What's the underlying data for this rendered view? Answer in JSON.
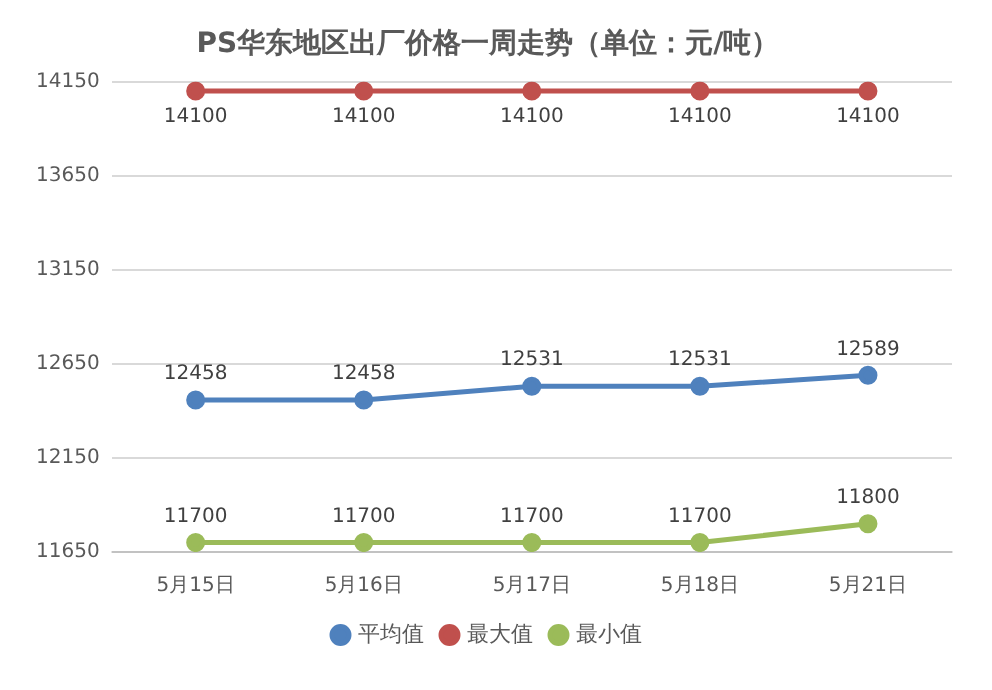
{
  "chart_data": {
    "type": "line",
    "title": "PS华东地区出厂价格一周走势（单位：元/吨）",
    "categories": [
      "5月15日",
      "5月16日",
      "5月17日",
      "5月18日",
      "5月21日"
    ],
    "series": [
      {
        "name": "平均值",
        "color": "#4f81bd",
        "values": [
          12458,
          12458,
          12531,
          12531,
          12589
        ]
      },
      {
        "name": "最大值",
        "color": "#c0504d",
        "values": [
          14100,
          14100,
          14100,
          14100,
          14100
        ]
      },
      {
        "name": "最小值",
        "color": "#9bbb59",
        "values": [
          11700,
          11700,
          11700,
          11700,
          11800
        ]
      }
    ],
    "ylim": [
      11650,
      14150
    ],
    "yticks": [
      11650,
      12150,
      12650,
      13150,
      13650,
      14150
    ],
    "grid": "y",
    "legend": "bottom",
    "marker": "circle",
    "line_style": "solid",
    "data_labels": true
  }
}
